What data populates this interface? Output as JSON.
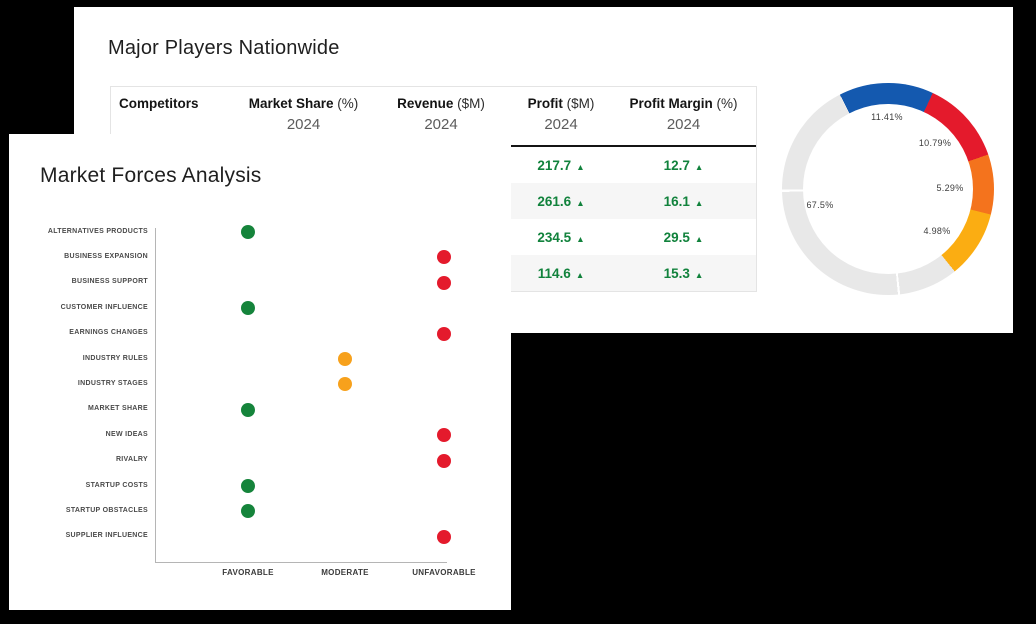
{
  "page": {
    "background": "#000000"
  },
  "colors": {
    "green": "#15843b",
    "red": "#e41a2c",
    "orange": "#f7a11c",
    "table_green": "#11823c",
    "donut_blue": "#1459af",
    "donut_red": "#e41a2c",
    "donut_orange": "#f4731d",
    "donut_amber": "#fbad12",
    "donut_gray": "#e8e8e8"
  },
  "chart_data": [
    {
      "type": "table",
      "title": "Major Players Nationwide",
      "columns": [
        {
          "label": "Competitors",
          "unit": "",
          "year": ""
        },
        {
          "label": "Market Share",
          "unit": "(%)",
          "year": "2024"
        },
        {
          "label": "Revenue",
          "unit": "($M)",
          "year": "2024"
        },
        {
          "label": "Profit",
          "unit": "($M)",
          "year": "2024"
        },
        {
          "label": "Profit Margin",
          "unit": "(%)",
          "year": "2024"
        }
      ],
      "rows": [
        {
          "profit": "217.7",
          "profit_trend": "▲",
          "profit_margin": "12.7",
          "margin_trend": "▲"
        },
        {
          "profit": "261.6",
          "profit_trend": "▲",
          "profit_margin": "16.1",
          "margin_trend": "▲"
        },
        {
          "profit": "234.5",
          "profit_trend": "▲",
          "profit_margin": "29.5",
          "margin_trend": "▲"
        },
        {
          "profit": "114.6",
          "profit_trend": "▲",
          "profit_margin": "15.3",
          "margin_trend": "▲"
        }
      ]
    },
    {
      "type": "pie",
      "subtype": "donut",
      "values": [
        11.41,
        10.79,
        5.29,
        4.98,
        67.5
      ],
      "labels": [
        "11.41%",
        "10.79%",
        "5.29%",
        "4.98%",
        "67.5%"
      ],
      "segment_colors": [
        "#1459af",
        "#e41a2c",
        "#f4731d",
        "#fbad12",
        "#e8e8e8"
      ],
      "arc": {
        "start_deg": -27,
        "span_deg": [
          52,
          46,
          33,
          37,
          192
        ],
        "gray_divider_abs_deg": [
          174,
          269
        ]
      }
    },
    {
      "type": "scatter",
      "title": "Market Forces Analysis",
      "x_categories": [
        "FAVORABLE",
        "MODERATE",
        "UNFAVORABLE"
      ],
      "rating_colors": {
        "FAVORABLE": "#15843b",
        "MODERATE": "#f7a11c",
        "UNFAVORABLE": "#e41a2c"
      },
      "points": [
        {
          "label": "ALTERNATIVES PRODUCTS",
          "x": "FAVORABLE"
        },
        {
          "label": "BUSINESS EXPANSION",
          "x": "UNFAVORABLE"
        },
        {
          "label": "BUSINESS SUPPORT",
          "x": "UNFAVORABLE"
        },
        {
          "label": "CUSTOMER INFLUENCE",
          "x": "FAVORABLE"
        },
        {
          "label": "EARNINGS CHANGES",
          "x": "UNFAVORABLE"
        },
        {
          "label": "INDUSTRY RULES",
          "x": "MODERATE"
        },
        {
          "label": "INDUSTRY STAGES",
          "x": "MODERATE"
        },
        {
          "label": "MARKET SHARE",
          "x": "FAVORABLE"
        },
        {
          "label": "NEW IDEAS",
          "x": "UNFAVORABLE"
        },
        {
          "label": "RIVALRY",
          "x": "UNFAVORABLE"
        },
        {
          "label": "STARTUP COSTS",
          "x": "FAVORABLE"
        },
        {
          "label": "STARTUP OBSTACLES",
          "x": "FAVORABLE"
        },
        {
          "label": "SUPPLIER INFLUENCE",
          "x": "UNFAVORABLE"
        }
      ]
    }
  ]
}
